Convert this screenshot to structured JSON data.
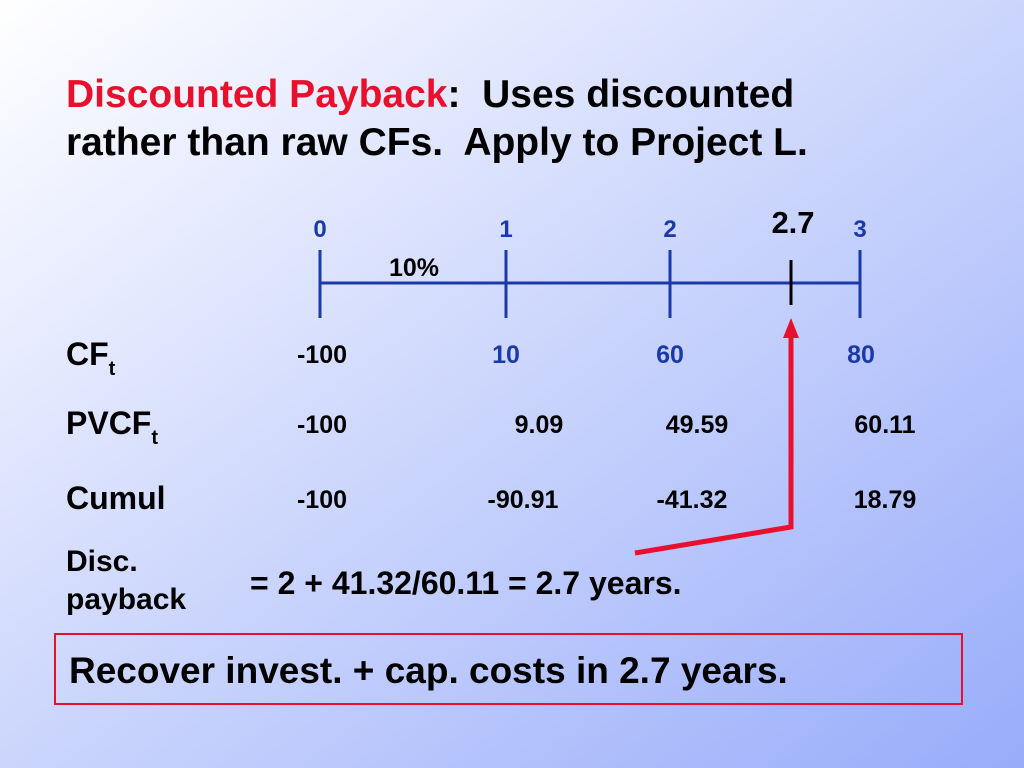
{
  "title": {
    "highlight": "Discounted Payback",
    "rest_line1": ":  Uses discounted",
    "line2": "rather than raw CFs.  Apply to Project L."
  },
  "timeline": {
    "periods": [
      "0",
      "1",
      "2",
      "3"
    ],
    "rate": "10%",
    "payback_marker": "2.7"
  },
  "rows": [
    {
      "label": "CF",
      "subscript": "t",
      "values": [
        "-100",
        "10",
        "60",
        "80"
      ]
    },
    {
      "label": "PVCF",
      "subscript": "t",
      "values": [
        "-100",
        "9.09",
        "49.59",
        "60.11"
      ]
    },
    {
      "label": "Cumul",
      "values": [
        "-100",
        "-90.91",
        "-41.32",
        "18.79"
      ]
    }
  ],
  "payback": {
    "label_line1": "Disc.",
    "label_line2": "payback",
    "formula": "= 2 + 41.32/60.11 = 2.7 years."
  },
  "conclusion": "Recover invest. + cap. costs in 2.7 years."
}
